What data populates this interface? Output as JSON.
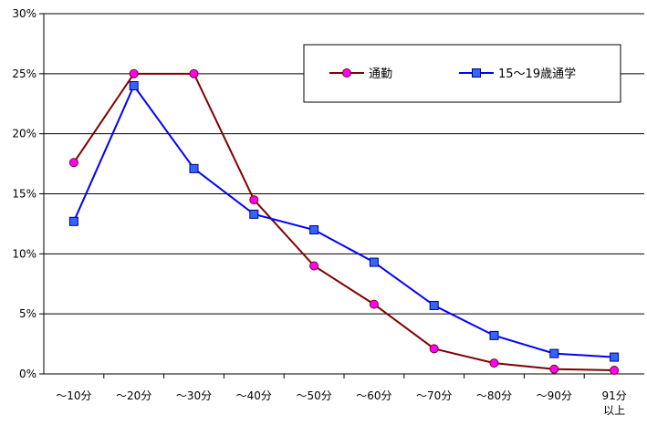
{
  "chart_data": {
    "type": "line",
    "categories": [
      "～10分",
      "～20分",
      "～30分",
      "～40分",
      "～50分",
      "～60分",
      "～70分",
      "～80分",
      "～90分",
      "91分\n以上"
    ],
    "y_ticks": [
      "0%",
      "5%",
      "10%",
      "15%",
      "20%",
      "25%",
      "30%"
    ],
    "ylim": [
      0,
      30
    ],
    "grid": "horizontal",
    "legend_position": "top-right",
    "series": [
      {
        "name": "通勤",
        "color": "#800000",
        "marker": "circle",
        "marker_color": "#ff00ff",
        "values": [
          17.6,
          25.0,
          25.0,
          14.5,
          9.0,
          5.8,
          2.1,
          0.9,
          0.4,
          0.3
        ]
      },
      {
        "name": "15～19歳通学",
        "color": "#0000ff",
        "marker": "square",
        "marker_color": "#3366ff",
        "values": [
          12.7,
          24.0,
          17.1,
          13.3,
          12.0,
          9.3,
          5.7,
          3.2,
          1.7,
          1.4
        ]
      }
    ]
  }
}
